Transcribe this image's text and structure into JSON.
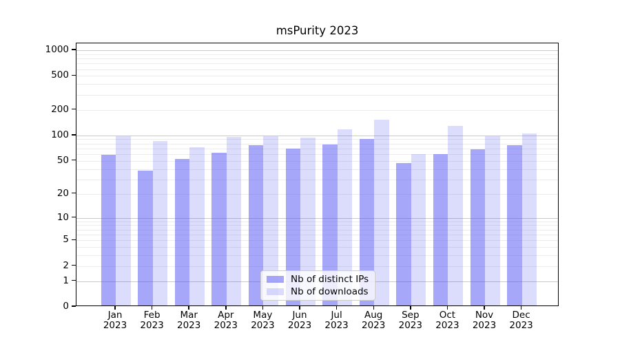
{
  "chart_data": {
    "type": "bar",
    "title": "msPurity 2023",
    "categories": [
      "Jan",
      "Feb",
      "Mar",
      "Apr",
      "May",
      "Jun",
      "Jul",
      "Aug",
      "Sep",
      "Oct",
      "Nov",
      "Dec"
    ],
    "x_tick_year": "2023",
    "series": [
      {
        "name": "Nb of distinct IPs",
        "color": "rgba(80,80,243,0.5)",
        "values": [
          57,
          37,
          51,
          60,
          74,
          67,
          75,
          87,
          45,
          58,
          66,
          74
        ]
      },
      {
        "name": "Nb of downloads",
        "color": "rgba(80,80,243,0.2)",
        "values": [
          94,
          82,
          70,
          93,
          95,
          90,
          113,
          148,
          58,
          124,
          94,
          102
        ]
      }
    ],
    "yticks": [
      0,
      1,
      2,
      5,
      10,
      20,
      50,
      100,
      200,
      500,
      1000
    ],
    "ylim": [
      0,
      1000
    ],
    "yscale": "log1p",
    "grid": "horizontal",
    "legend_position": "inside-bottom-center",
    "colors": {
      "major_grid": "#c9c9c9",
      "minor_grid": "#ececec",
      "axis": "#000000",
      "background": "#ffffff",
      "bar_base": "#5050f3"
    }
  }
}
